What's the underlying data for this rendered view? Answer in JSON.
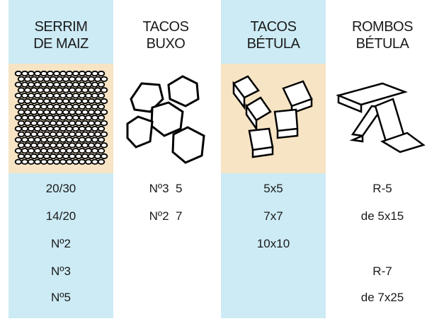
{
  "columns": [
    {
      "header": [
        "SERRIM",
        "DE MAIZ"
      ],
      "items": [
        "20/30",
        "14/20",
        "Nº2",
        "Nº3",
        "Nº5"
      ]
    },
    {
      "header": [
        "TACOS",
        "BUXO"
      ],
      "items": [
        "Nº3  5",
        "Nº2  7",
        null,
        null,
        null
      ]
    },
    {
      "header": [
        "TACOS",
        "BÉTULA"
      ],
      "items": [
        "5x5",
        "7x7",
        "10x10",
        null,
        null
      ]
    },
    {
      "header": [
        "ROMBOS",
        "BÉTULA"
      ],
      "items": [
        "R-5",
        "de 5x15",
        null,
        "R-7",
        "de 7x25"
      ]
    }
  ]
}
